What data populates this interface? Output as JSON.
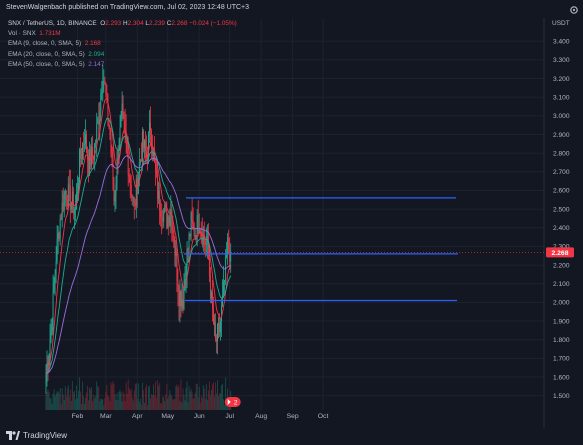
{
  "header": {
    "publisher": "StevenWalgenbach published on TradingView.com, Jul 02, 2023 12:48 UTC+3"
  },
  "legend": {
    "symbol": "SNX / TetherUS, 1D, BINANCE",
    "ohlc": {
      "o_label": "O",
      "o": "2.293",
      "h_label": "H",
      "h": "2.304",
      "l_label": "L",
      "l": "2.239",
      "c_label": "C",
      "c": "2.268",
      "change": "−0.024 (−1.05%)"
    },
    "vol_label": "Vol · SNX",
    "vol_value": "1.731M",
    "ema9_label": "EMA (9, close, 0, SMA, 5)",
    "ema9_value": "2.168",
    "ema20_label": "EMA (20, close, 0, SMA, 5)",
    "ema20_value": "2.094",
    "ema50_label": "EMA (50, close, 0, SMA, 5)",
    "ema50_value": "2.147"
  },
  "currency": "USDT",
  "current_price_label": "2.268",
  "events_badge": "2",
  "footer": {
    "brand": "TradingView"
  },
  "colors": {
    "background": "#131722",
    "up": "#22ab94",
    "down": "#f23645",
    "ema9": "#f23645",
    "ema20": "#22ab94",
    "ema50": "#9c6ce0",
    "levels": "#2962ff",
    "price_tag": "#f23645"
  },
  "chart_data": {
    "type": "candlestick",
    "y_ticks": [
      "3.400",
      "3.300",
      "3.200",
      "3.100",
      "3.000",
      "2.900",
      "2.800",
      "2.700",
      "2.600",
      "2.500",
      "2.400",
      "2.300",
      "2.200",
      "2.100",
      "2.000",
      "1.900",
      "1.800",
      "1.700",
      "1.600",
      "1.500"
    ],
    "ylim": [
      1.45,
      3.46
    ],
    "x_ticks": [
      "Feb",
      "Mar",
      "Apr",
      "May",
      "Jun",
      "Jul",
      "Aug",
      "Sep",
      "Oct"
    ],
    "horizontal_levels": [
      2.56,
      2.26,
      2.01
    ],
    "last_price": 2.268,
    "series": [
      {
        "name": "SNX / TetherUS",
        "kind": "candles"
      },
      {
        "name": "EMA (9, close, 0, SMA, 5)",
        "last": 2.168
      },
      {
        "name": "EMA (20, close, 0, SMA, 5)",
        "last": 2.094
      },
      {
        "name": "EMA (50, close, 0, SMA, 5)",
        "last": 2.147
      },
      {
        "name": "Vol · SNX",
        "last": "1.731M"
      }
    ],
    "close_path": [
      [
        "2023-01-01",
        1.62
      ],
      [
        "2023-01-06",
        1.85
      ],
      [
        "2023-01-11",
        2.25
      ],
      [
        "2023-01-15",
        2.45
      ],
      [
        "2023-01-20",
        2.6
      ],
      [
        "2023-01-25",
        2.55
      ],
      [
        "2023-01-30",
        2.5
      ],
      [
        "2023-02-03",
        2.75
      ],
      [
        "2023-02-08",
        2.9
      ],
      [
        "2023-02-12",
        2.75
      ],
      [
        "2023-02-17",
        2.8
      ],
      [
        "2023-02-22",
        3.0
      ],
      [
        "2023-02-26",
        3.25
      ],
      [
        "2023-03-01",
        3.1
      ],
      [
        "2023-03-05",
        2.9
      ],
      [
        "2023-03-09",
        2.55
      ],
      [
        "2023-03-13",
        2.8
      ],
      [
        "2023-03-17",
        3.0
      ],
      [
        "2023-03-21",
        2.85
      ],
      [
        "2023-03-25",
        2.65
      ],
      [
        "2023-03-29",
        2.5
      ],
      [
        "2023-04-02",
        2.7
      ],
      [
        "2023-04-06",
        2.85
      ],
      [
        "2023-04-10",
        2.78
      ],
      [
        "2023-04-14",
        2.95
      ],
      [
        "2023-04-18",
        2.72
      ],
      [
        "2023-04-22",
        2.55
      ],
      [
        "2023-04-26",
        2.5
      ],
      [
        "2023-04-30",
        2.45
      ],
      [
        "2023-05-04",
        2.5
      ],
      [
        "2023-05-08",
        2.28
      ],
      [
        "2023-05-12",
        2.05
      ],
      [
        "2023-05-16",
        2.02
      ],
      [
        "2023-05-20",
        2.25
      ],
      [
        "2023-05-24",
        2.42
      ],
      [
        "2023-05-28",
        2.38
      ],
      [
        "2023-06-01",
        2.45
      ],
      [
        "2023-06-05",
        2.35
      ],
      [
        "2023-06-09",
        2.3
      ],
      [
        "2023-06-13",
        2.0
      ],
      [
        "2023-06-17",
        1.78
      ],
      [
        "2023-06-21",
        1.85
      ],
      [
        "2023-06-25",
        2.05
      ],
      [
        "2023-06-29",
        2.3
      ],
      [
        "2023-07-02",
        2.268
      ]
    ]
  }
}
